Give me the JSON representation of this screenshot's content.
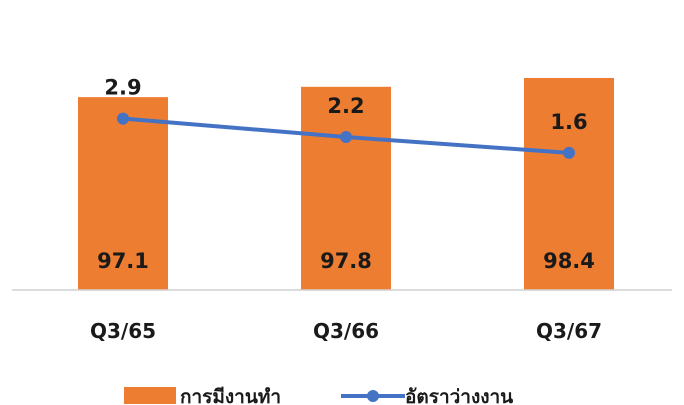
{
  "chart_data": {
    "type": "bar",
    "categories": [
      "Q3/65",
      "Q3/66",
      "Q3/67"
    ],
    "series": [
      {
        "name": "การมีงานทำ",
        "type": "bar",
        "color": "#ED7D31",
        "values": [
          97.1,
          97.8,
          98.4
        ]
      },
      {
        "name": "อัตราว่างงาน",
        "type": "line",
        "color": "#4472C4",
        "values": [
          2.9,
          2.2,
          1.6
        ]
      }
    ],
    "legend_position": "bottom",
    "grid": false,
    "axis_labels_visible": false
  }
}
